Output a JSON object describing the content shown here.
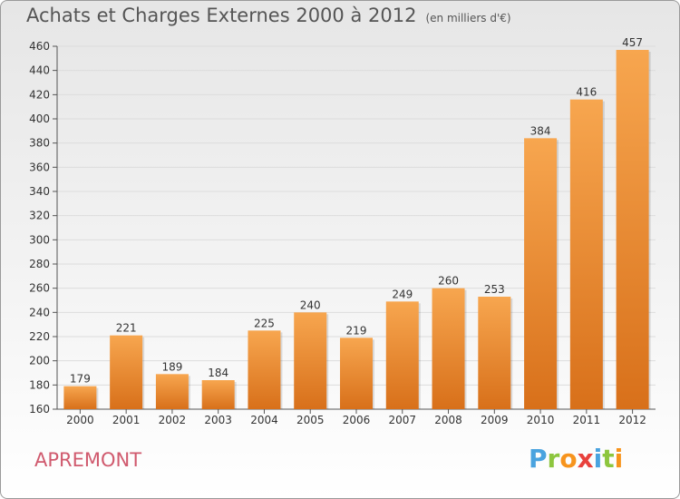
{
  "title": "Achats et Charges Externes 2000 à 2012",
  "subtitle": "(en milliers d'€)",
  "commune": "APREMONT",
  "logo": "Proxiti",
  "colors": {
    "bar_light": "#f7a64f",
    "bar_dark": "#d8701a",
    "commune_text": "#d05a6e"
  },
  "chart_data": {
    "type": "bar",
    "categories": [
      "2000",
      "2001",
      "2002",
      "2003",
      "2004",
      "2005",
      "2006",
      "2007",
      "2008",
      "2009",
      "2010",
      "2011",
      "2012"
    ],
    "values": [
      179,
      221,
      189,
      184,
      225,
      240,
      219,
      249,
      260,
      253,
      384,
      416,
      457
    ],
    "ylim": [
      160,
      460
    ],
    "yticks": [
      160,
      180,
      200,
      220,
      240,
      260,
      280,
      300,
      320,
      340,
      360,
      380,
      400,
      420,
      440,
      460
    ],
    "grid": true,
    "data_labels": true
  }
}
